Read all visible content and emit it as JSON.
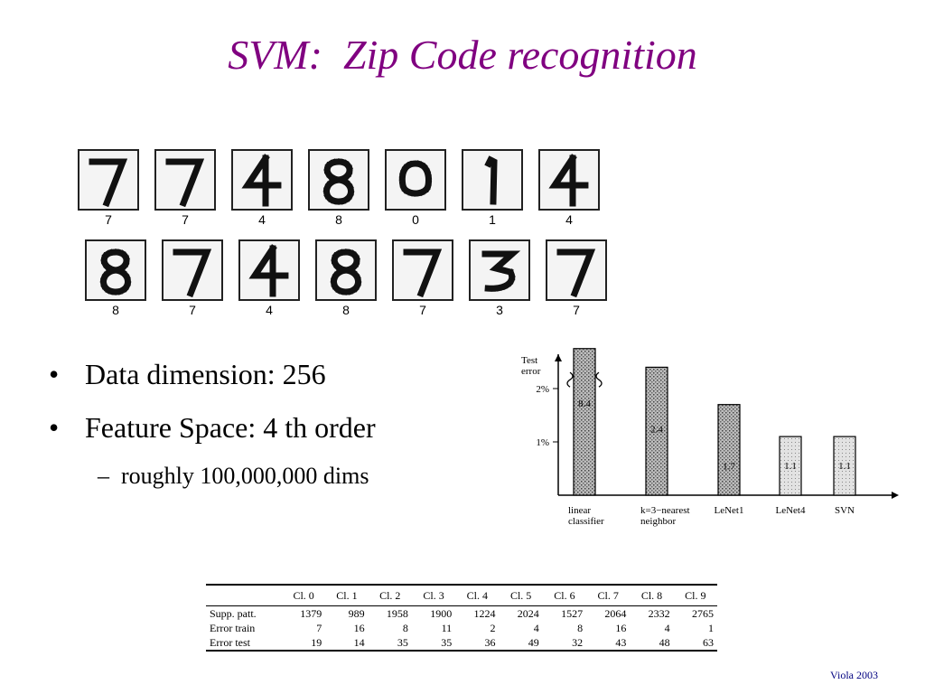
{
  "title": "SVM:  Zip Code recognition",
  "digits": {
    "row1": [
      "7",
      "7",
      "4",
      "8",
      "0",
      "1",
      "4"
    ],
    "row2": [
      "8",
      "7",
      "4",
      "8",
      "7",
      "3",
      "7"
    ]
  },
  "bullets": [
    {
      "text": "Data dimension: 256"
    },
    {
      "text": "Feature Space: 4 th order"
    }
  ],
  "sub_bullets": [
    {
      "text": "roughly 100,000,000 dims"
    }
  ],
  "chart_data": {
    "type": "bar",
    "ylabel": "Test\nerror",
    "y_ticks": [
      "2%",
      "1%"
    ],
    "categories": [
      {
        "label": "linear\nclassifier",
        "value": 8.4,
        "value_label": "8.4"
      },
      {
        "label": "k=3−nearest\nneighbor",
        "value": 2.4,
        "value_label": "2.4"
      },
      {
        "label": "LeNet1",
        "value": 1.7,
        "value_label": "1.7"
      },
      {
        "label": "LeNet4",
        "value": 1.1,
        "value_label": "1.1"
      },
      {
        "label": "SVN",
        "value": 1.1,
        "value_label": "1.1"
      }
    ],
    "axis_break": true
  },
  "table": {
    "columns": [
      "Cl. 0",
      "Cl. 1",
      "Cl. 2",
      "Cl. 3",
      "Cl. 4",
      "Cl. 5",
      "Cl. 6",
      "Cl. 7",
      "Cl. 8",
      "Cl. 9"
    ],
    "rows": [
      {
        "label": "Supp. patt.",
        "values": [
          "1379",
          "989",
          "1958",
          "1900",
          "1224",
          "2024",
          "1527",
          "2064",
          "2332",
          "2765"
        ]
      },
      {
        "label": "Error train",
        "values": [
          "7",
          "16",
          "8",
          "11",
          "2",
          "4",
          "8",
          "16",
          "4",
          "1"
        ]
      },
      {
        "label": "Error test",
        "values": [
          "19",
          "14",
          "35",
          "35",
          "36",
          "49",
          "32",
          "43",
          "48",
          "63"
        ]
      }
    ]
  },
  "footer": "Viola 2003"
}
